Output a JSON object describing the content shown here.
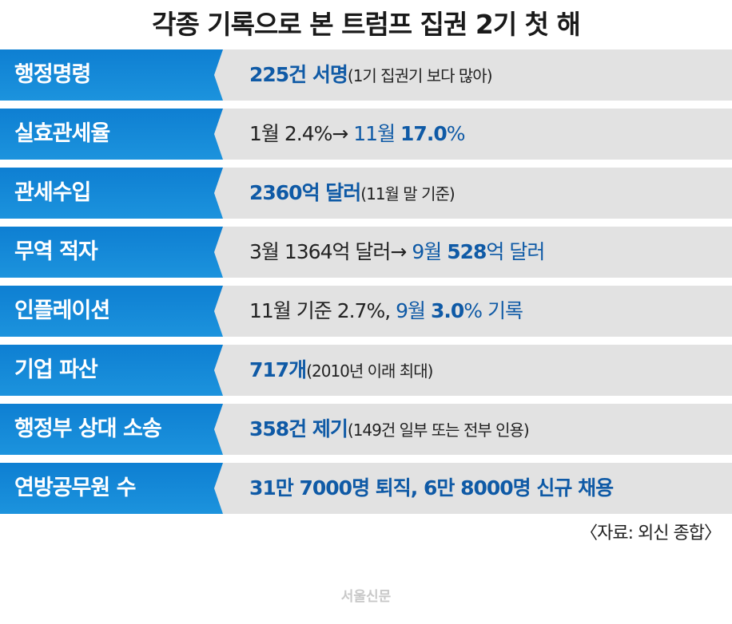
{
  "title": "각종 기록으로 본 트럼프 집권 2기 첫 해",
  "rows": [
    {
      "label": "행정명령",
      "v1": "225건 서명",
      "v2": "(1기 집권기 보다 많아)"
    },
    {
      "label": "실효관세율",
      "v1": "1월 2.4%→ ",
      "v2": "11월 ",
      "v3": "17.0",
      "v4": "%"
    },
    {
      "label": "관세수입",
      "v1": "2360억 달러",
      "v2": "(11월 말 기준)"
    },
    {
      "label": "무역 적자",
      "v1": "3월 1364억 달러→ ",
      "v2": "9월 ",
      "v3": "528",
      "v4": "억 달러"
    },
    {
      "label": "인플레이션",
      "v1": "11월 기준 2.7%, ",
      "v2": "9월 ",
      "v3": "3.0",
      "v4": "% 기록"
    },
    {
      "label": "기업 파산",
      "v1": "717개",
      "v2": "(2010년 이래 최대)"
    },
    {
      "label": "행정부 상대 소송",
      "v1": "358건 제기",
      "v2": "(149건 일부 또는 전부 인용)"
    },
    {
      "label": "연방공무원 수",
      "v1": "31만 7000명 퇴직, 6만 8000명 신규 채용"
    }
  ],
  "source": "〈자료: 외신 종합〉",
  "logo": "서울신문"
}
